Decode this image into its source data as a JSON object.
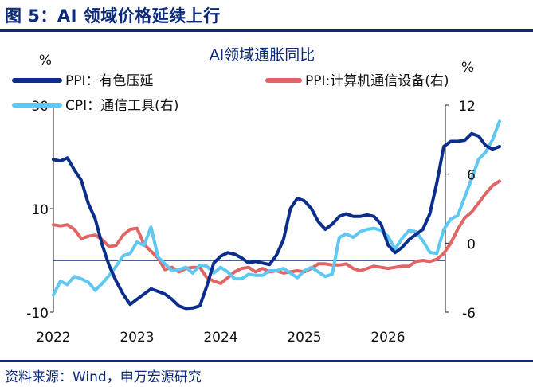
{
  "figure": {
    "title": "图 5：AI 领域价格延续上行",
    "source": "资料来源：Wind，申万宏源研究"
  },
  "colors": {
    "navy": "#0b2a7a",
    "ppi_metals": "#0b2d8c",
    "ppi_computer": "#e06666",
    "cpi_tools": "#5ec8f2"
  },
  "chart_data": {
    "type": "line",
    "title": "AI领域通胀同比",
    "left_axis": {
      "label": "%",
      "ylim": [
        -10,
        30
      ],
      "ticks": [
        -10,
        10,
        30
      ]
    },
    "right_axis": {
      "label": "%",
      "ylim": [
        -6,
        12
      ],
      "ticks": [
        -6,
        0,
        6,
        12
      ]
    },
    "x_ticks": [
      "2022",
      "2023",
      "2024",
      "2025",
      "2026"
    ],
    "x_start": "2022-01",
    "legend_position": "top",
    "series": [
      {
        "name": "PPI：有色压延",
        "axis": "left",
        "color": "#0b2d8c",
        "values": [
          19.5,
          19.2,
          19.8,
          17.5,
          15.5,
          11,
          8,
          3,
          -1,
          -4,
          -6.5,
          -8.5,
          -7.5,
          -6.5,
          -5.5,
          -6,
          -6.5,
          -7.5,
          -8.8,
          -9.3,
          -9.2,
          -8.8,
          -5,
          -0.5,
          0.8,
          1.5,
          1.2,
          0.5,
          -0.5,
          -0.2,
          -0.5,
          -0.8,
          1,
          4,
          10,
          12,
          11.5,
          10,
          7.5,
          6,
          7,
          8.5,
          9,
          8.5,
          8.5,
          8.8,
          8.5,
          7,
          3,
          1.5,
          2.5,
          4,
          5,
          6,
          9,
          15,
          22,
          23,
          23,
          23.2,
          24.5,
          24,
          22.2,
          21.5,
          22
        ]
      },
      {
        "name": "PPI:计算机通信设备(右)",
        "axis": "right",
        "color": "#e06666",
        "values": [
          1.6,
          1.5,
          1.6,
          1.2,
          0.4,
          0.6,
          0.7,
          0.3,
          -0.3,
          -0.2,
          0.7,
          1.2,
          1.3,
          -0.1,
          -0.7,
          -1.3,
          -2.3,
          -2.1,
          -2.5,
          -2.2,
          -2.1,
          -2.1,
          -3,
          -3.3,
          -3.5,
          -3,
          -2.5,
          -2.2,
          -2.1,
          -2.5,
          -2.2,
          -2.5,
          -2.4,
          -2.6,
          -2.5,
          -2.4,
          -2.5,
          -2.2,
          -1.8,
          -1.8,
          -1.9,
          -1.9,
          -1.8,
          -2.2,
          -2.4,
          -2.2,
          -2.0,
          -2.1,
          -2.2,
          -2.1,
          -2.0,
          -2.0,
          -1.6,
          -1.5,
          -1.6,
          -1.4,
          -0.9,
          0,
          1.2,
          2.2,
          2.7,
          3.5,
          4.3,
          5.0,
          5.4
        ]
      },
      {
        "name": "CPI：通信工具(右)",
        "axis": "right",
        "color": "#5ec8f2",
        "values": [
          -4.5,
          -3.3,
          -3.6,
          -2.9,
          -3.1,
          -3.4,
          -4.1,
          -3.5,
          -2.8,
          -2.0,
          -1.1,
          -0.9,
          0.1,
          -0.2,
          1.4,
          -1.2,
          -1.8,
          -2.4,
          -2.3,
          -2.1,
          -2.6,
          -1.9,
          -2.0,
          -2.6,
          -2.1,
          -2.5,
          -3.1,
          -3.1,
          -2.7,
          -2.8,
          -2.8,
          -2.4,
          -2.4,
          -2.2,
          -2.6,
          -3.0,
          -2.4,
          -2.1,
          -2.5,
          -2.9,
          -2.7,
          0.5,
          0.8,
          0.5,
          1.0,
          1.2,
          1.3,
          1.1,
          0.6,
          -0.5,
          0.4,
          1.1,
          1.0,
          0.2,
          -0.8,
          -0.9,
          1.2,
          2.1,
          2.4,
          4.0,
          5.6,
          7.3,
          7.9,
          9.0,
          10.6
        ]
      }
    ]
  }
}
